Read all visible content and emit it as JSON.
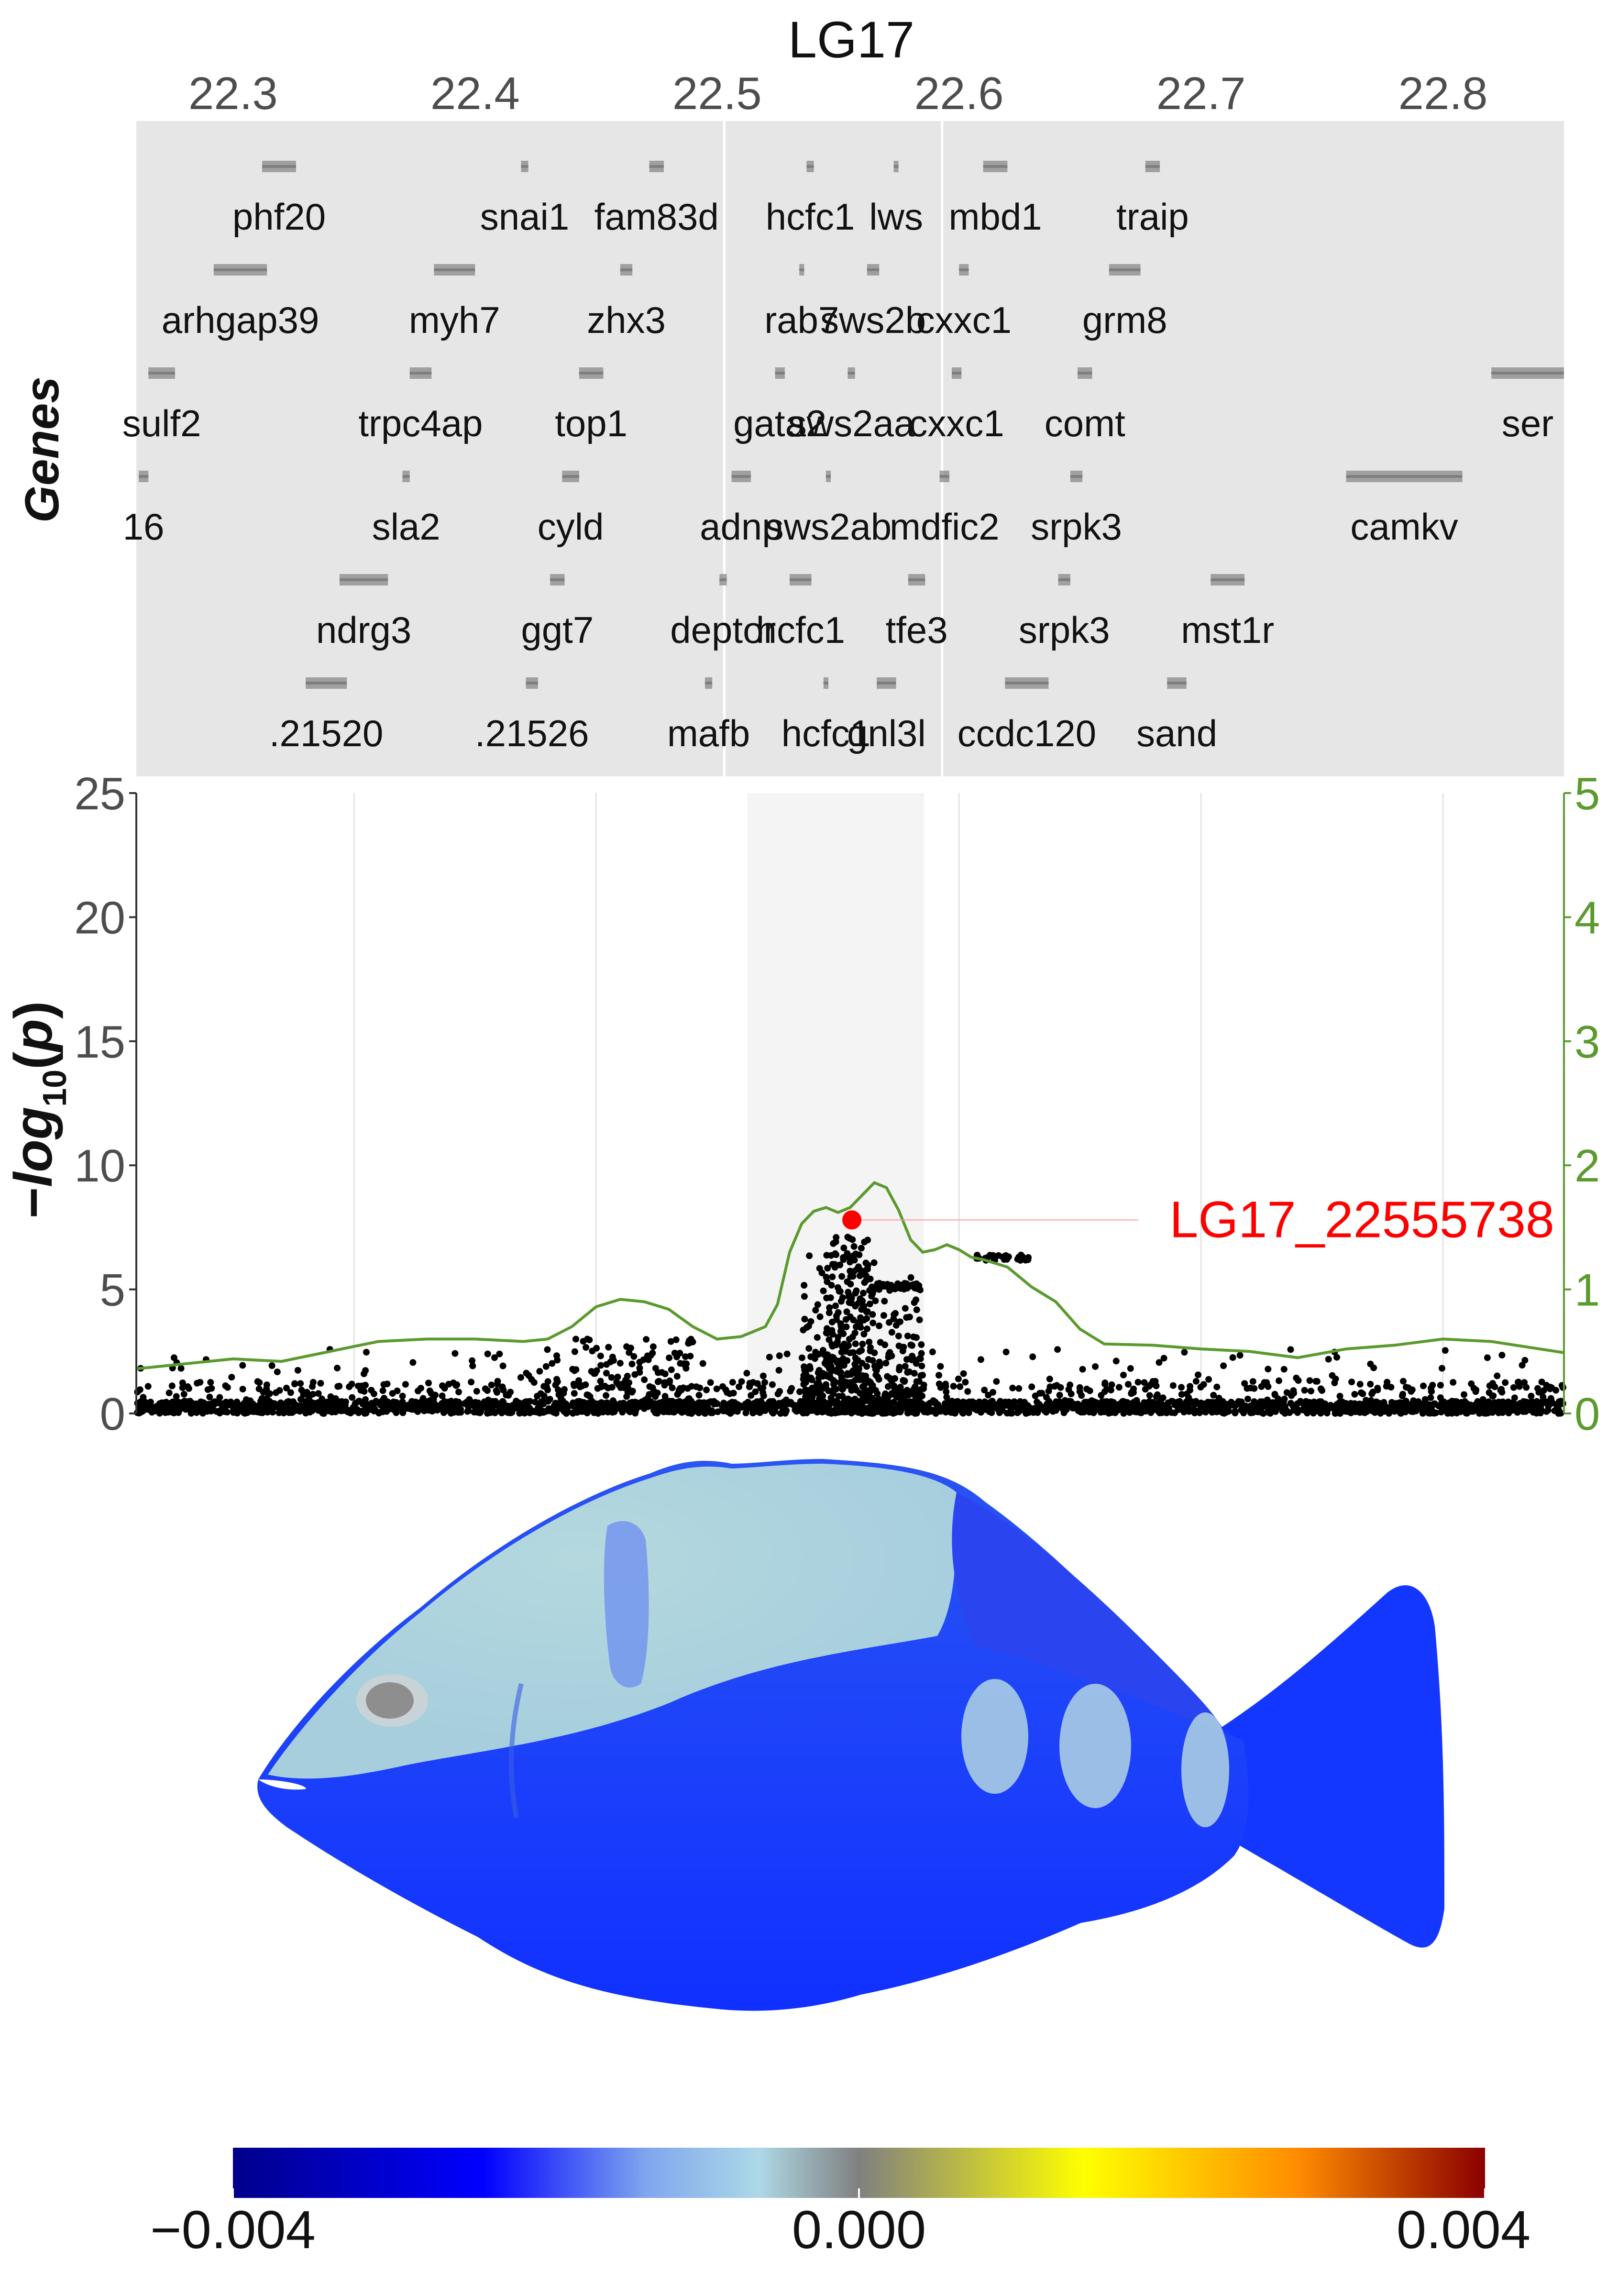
{
  "chart_data": [
    {
      "type": "gene_track",
      "title": "LG17",
      "ylabel": "Genes",
      "xlim": [
        22.26,
        22.85
      ],
      "ticks": [
        "22.3",
        "22.4",
        "22.5",
        "22.6",
        "22.7",
        "22.8"
      ],
      "tick_values": [
        22.3,
        22.4,
        22.5,
        22.6,
        22.7,
        22.8
      ],
      "highlight_region": [
        22.503,
        22.593
      ],
      "genes": [
        {
          "label": "phf20",
          "start": 22.312,
          "end": 22.326,
          "row": 0
        },
        {
          "label": "snai1",
          "start": 22.419,
          "end": 22.422,
          "row": 0
        },
        {
          "label": "fam83d",
          "start": 22.472,
          "end": 22.478,
          "row": 0
        },
        {
          "label": "hcfc1",
          "start": 22.537,
          "end": 22.54,
          "row": 0
        },
        {
          "label": "lws",
          "start": 22.573,
          "end": 22.575,
          "row": 0
        },
        {
          "label": "mbd1",
          "start": 22.61,
          "end": 22.62,
          "row": 0
        },
        {
          "label": "traip",
          "start": 22.677,
          "end": 22.683,
          "row": 0
        },
        {
          "label": "arhgap39",
          "start": 22.292,
          "end": 22.314,
          "row": 1
        },
        {
          "label": "myh7",
          "start": 22.383,
          "end": 22.4,
          "row": 1
        },
        {
          "label": "zhx3",
          "start": 22.46,
          "end": 22.465,
          "row": 1
        },
        {
          "label": "rab7",
          "start": 22.534,
          "end": 22.536,
          "row": 1
        },
        {
          "label": "sws2b",
          "start": 22.562,
          "end": 22.567,
          "row": 1
        },
        {
          "label": "cxxc1",
          "start": 22.6,
          "end": 22.604,
          "row": 1
        },
        {
          "label": "grm8",
          "start": 22.662,
          "end": 22.675,
          "row": 1
        },
        {
          "label": "sulf2",
          "start": 22.265,
          "end": 22.276,
          "row": 2
        },
        {
          "label": "trpc4ap",
          "start": 22.373,
          "end": 22.382,
          "row": 2
        },
        {
          "label": "top1",
          "start": 22.443,
          "end": 22.453,
          "row": 2
        },
        {
          "label": "gata2",
          "start": 22.524,
          "end": 22.528,
          "row": 2
        },
        {
          "label": "sws2aa",
          "start": 22.554,
          "end": 22.557,
          "row": 2
        },
        {
          "label": "cxxc1",
          "start": 22.597,
          "end": 22.601,
          "row": 2
        },
        {
          "label": "comt",
          "start": 22.649,
          "end": 22.655,
          "row": 2
        },
        {
          "label": "ser",
          "start": 22.82,
          "end": 22.85,
          "row": 2
        },
        {
          "label": "16",
          "start": 22.261,
          "end": 22.265,
          "row": 3
        },
        {
          "label": "sla2",
          "start": 22.37,
          "end": 22.373,
          "row": 3
        },
        {
          "label": "cyld",
          "start": 22.436,
          "end": 22.443,
          "row": 3
        },
        {
          "label": "adnp",
          "start": 22.506,
          "end": 22.514,
          "row": 3
        },
        {
          "label": "sws2ab",
          "start": 22.545,
          "end": 22.547,
          "row": 3
        },
        {
          "label": "mdfic2",
          "start": 22.592,
          "end": 22.596,
          "row": 3
        },
        {
          "label": "srpk3",
          "start": 22.646,
          "end": 22.651,
          "row": 3
        },
        {
          "label": "camkv",
          "start": 22.76,
          "end": 22.808,
          "row": 3
        },
        {
          "label": "ndrg3",
          "start": 22.344,
          "end": 22.364,
          "row": 4
        },
        {
          "label": "ggt7",
          "start": 22.431,
          "end": 22.437,
          "row": 4
        },
        {
          "label": "deptor",
          "start": 22.501,
          "end": 22.504,
          "row": 4
        },
        {
          "label": "hcfc1",
          "start": 22.53,
          "end": 22.539,
          "row": 4
        },
        {
          "label": "tfe3",
          "start": 22.579,
          "end": 22.586,
          "row": 4
        },
        {
          "label": "srpk3",
          "start": 22.641,
          "end": 22.646,
          "row": 4
        },
        {
          "label": "mst1r",
          "start": 22.704,
          "end": 22.718,
          "row": 4
        },
        {
          "label": ".21520",
          "start": 22.33,
          "end": 22.347,
          "row": 5
        },
        {
          "label": ".21526",
          "start": 22.421,
          "end": 22.426,
          "row": 5
        },
        {
          "label": "mafb",
          "start": 22.495,
          "end": 22.498,
          "row": 5
        },
        {
          "label": "hcfc1",
          "start": 22.544,
          "end": 22.546,
          "row": 5
        },
        {
          "label": "gnl3l",
          "start": 22.566,
          "end": 22.574,
          "row": 5
        },
        {
          "label": "ccdc120",
          "start": 22.619,
          "end": 22.637,
          "row": 5
        },
        {
          "label": "sand",
          "start": 22.686,
          "end": 22.694,
          "row": 5
        }
      ]
    },
    {
      "type": "scatter",
      "ylabel": "-log10(p)",
      "xlim": [
        22.26,
        22.85
      ],
      "ylim": [
        0,
        25
      ],
      "yticks": [
        0,
        5,
        10,
        15,
        20,
        25
      ],
      "y2lim": [
        0,
        5
      ],
      "y2ticks": [
        0,
        1,
        2,
        3,
        4,
        5
      ],
      "lead_snp": {
        "label": "LG17_22555738",
        "x": 22.5557,
        "y": 7.8
      },
      "series": [
        {
          "kind": "smoothed_line",
          "color": "#5b9a2e",
          "x": [
            22.26,
            22.28,
            22.3,
            22.32,
            22.34,
            22.36,
            22.38,
            22.4,
            22.42,
            22.43,
            22.44,
            22.45,
            22.46,
            22.47,
            22.48,
            22.49,
            22.5,
            22.51,
            22.515,
            22.52,
            22.525,
            22.53,
            22.535,
            22.54,
            22.545,
            22.55,
            22.555,
            22.56,
            22.565,
            22.57,
            22.575,
            22.58,
            22.585,
            22.59,
            22.595,
            22.6,
            22.605,
            22.61,
            22.62,
            22.63,
            22.64,
            22.65,
            22.66,
            22.68,
            22.7,
            22.72,
            22.74,
            22.76,
            22.78,
            22.8,
            22.82,
            22.85
          ],
          "y": [
            0.36,
            0.4,
            0.44,
            0.42,
            0.5,
            0.58,
            0.6,
            0.6,
            0.58,
            0.6,
            0.7,
            0.86,
            0.92,
            0.9,
            0.84,
            0.7,
            0.6,
            0.62,
            0.66,
            0.7,
            0.88,
            1.3,
            1.53,
            1.63,
            1.66,
            1.62,
            1.66,
            1.76,
            1.86,
            1.82,
            1.64,
            1.4,
            1.3,
            1.32,
            1.36,
            1.32,
            1.26,
            1.24,
            1.18,
            1.02,
            0.9,
            0.68,
            0.56,
            0.55,
            0.52,
            0.5,
            0.45,
            0.52,
            0.55,
            0.6,
            0.58,
            0.49
          ]
        },
        {
          "kind": "points",
          "color": "#000000"
        }
      ]
    },
    {
      "type": "heatmap",
      "colorbar": {
        "ticks": [
          "−0.004",
          "0.000",
          "0.004"
        ],
        "tick_values": [
          -0.004,
          0.0,
          0.004
        ],
        "colors": [
          "#00008b",
          "#0000ff",
          "#add8e6",
          "#808080",
          "#ffff00",
          "#ff8c00",
          "#8b0000"
        ]
      }
    }
  ]
}
